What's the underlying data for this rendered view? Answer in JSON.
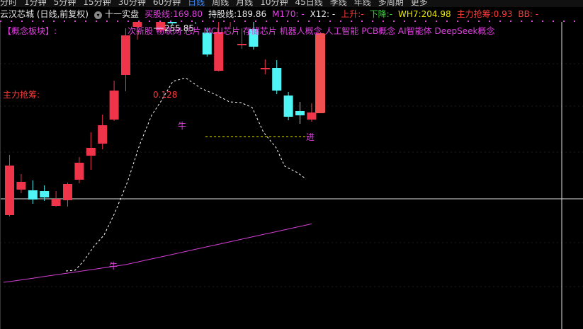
{
  "toolbar": {
    "periods": [
      "分时",
      "1分钟",
      "5分钟",
      "15分钟",
      "30分钟",
      "60分钟",
      "日线",
      "周线",
      "月线",
      "10分钟",
      "45日线",
      "季线",
      "年线",
      "多周期",
      "更多"
    ],
    "active_period": "日线"
  },
  "info": {
    "stock_name": "云汉芯城 (日线,前复权)",
    "dropdown_icon": "chevron-down-icon",
    "marker": "十一实盘",
    "buy_label": "买股线:",
    "buy_value": "169.80",
    "hold_label": "持股线:",
    "hold_value": "189.86",
    "m170": "M170: -",
    "x12": "X12: -",
    "rise_label": "上升:",
    "rise_value": "-",
    "fall_label": "下降:",
    "fall_value": "-",
    "wh7_label": "WH7:",
    "wh7_value": "204.98",
    "main_label": "主力抢筹:",
    "main_value": "0.93",
    "bb": "BB: -"
  },
  "concept": {
    "label": "【概念板块】:",
    "tags": "次新股 物联网 芯片 MCU芯片 存储芯片 机器人概念 人工智能 PCB概念 AI智能体 DeepSeek概念"
  },
  "annotations": {
    "high_price": "255.85",
    "main_grab_label": "主力抢筹:",
    "main_grab_value": "0.128",
    "niu1": "牛",
    "niu2": "牛",
    "jin": "进"
  },
  "colors": {
    "up": "#f0354b",
    "down": "#4ff4f4",
    "ma_line": "#d43fd4",
    "concept": "#e040e0",
    "bg": "#000000"
  },
  "chart_data": {
    "type": "candlestick",
    "candles": [
      {
        "open": 161,
        "close": 231,
        "high": 246,
        "low": 159
      },
      {
        "open": 197,
        "close": 208,
        "high": 219,
        "low": 192
      },
      {
        "open": 196,
        "close": 183,
        "high": 210,
        "low": 177
      },
      {
        "open": 195,
        "close": 186,
        "high": 203,
        "low": 181
      },
      {
        "open": 174,
        "close": 184,
        "high": 195,
        "low": 173
      },
      {
        "open": 182,
        "close": 205,
        "high": 207,
        "low": 173
      },
      {
        "open": 211,
        "close": 235,
        "high": 243,
        "low": 206
      },
      {
        "open": 245,
        "close": 256,
        "high": 278,
        "low": 225
      },
      {
        "open": 262,
        "close": 288,
        "high": 303,
        "low": 254
      },
      {
        "open": 296,
        "close": 337,
        "high": 351,
        "low": 294
      },
      {
        "open": 359,
        "close": 415,
        "high": 425,
        "low": 336
      },
      {
        "open": 427,
        "close": 474,
        "high": 494,
        "low": 409
      },
      {
        "open": 471,
        "close": 461,
        "high": 500,
        "low": 456
      },
      {
        "open": 422,
        "close": 476,
        "high": 502,
        "low": 419
      },
      {
        "open": 459,
        "close": 432,
        "high": 488,
        "low": 429
      },
      {
        "open": 464,
        "close": 456,
        "high": 484,
        "low": 451
      },
      {
        "open": 456,
        "close": 439,
        "high": 469,
        "low": 431
      },
      {
        "open": 419,
        "close": 388,
        "high": 426,
        "low": 385
      },
      {
        "open": 365,
        "close": 420,
        "high": 437,
        "low": 364
      },
      {
        "open": 442,
        "close": 442,
        "high": 462,
        "low": 427
      },
      {
        "open": 403,
        "close": 403,
        "high": 425,
        "low": 396
      },
      {
        "open": 424,
        "close": 399,
        "high": 436,
        "low": 395
      },
      {
        "open": 369,
        "close": 369,
        "high": 381,
        "low": 360
      },
      {
        "open": 369,
        "close": 337,
        "high": 380,
        "low": 332
      },
      {
        "open": 330,
        "close": 300,
        "high": 335,
        "low": 295
      },
      {
        "open": 308,
        "close": 302,
        "high": 321,
        "low": 290
      },
      {
        "open": 296,
        "close": 306,
        "high": 319,
        "low": 293
      }
    ],
    "signal_bar": {
      "bottom": 305,
      "top": 418
    },
    "high_label_value": 255.85
  }
}
